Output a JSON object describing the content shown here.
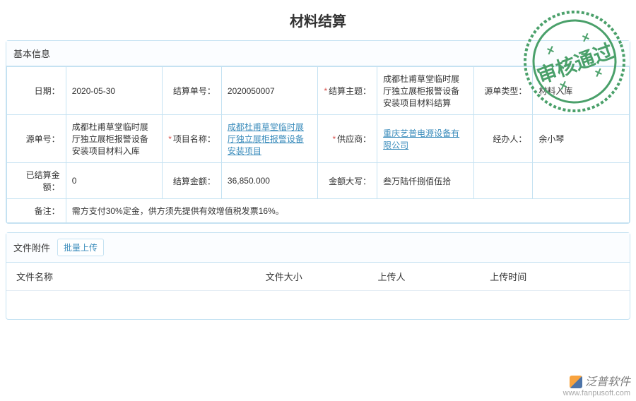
{
  "page_title": "材料结算",
  "stamp_text": "审核通过",
  "basic_info": {
    "header": "基本信息",
    "rows": [
      [
        {
          "label": "日期：",
          "req": false,
          "value": "2020-05-30",
          "link": false
        },
        {
          "label": "结算单号：",
          "req": false,
          "value": "2020050007",
          "link": false
        },
        {
          "label": "结算主题：",
          "req": true,
          "value": "成都杜甫草堂临时展厅独立展柜报警设备安装项目材料结算",
          "link": false
        },
        {
          "label": "源单类型：",
          "req": false,
          "value": "材料入库",
          "link": false
        }
      ],
      [
        {
          "label": "源单号：",
          "req": false,
          "value": "成都杜甫草堂临时展厅独立展柜报警设备安装项目材料入库",
          "link": false
        },
        {
          "label": "项目名称：",
          "req": true,
          "value": "成都杜甫草堂临时展厅独立展柜报警设备安装项目",
          "link": true
        },
        {
          "label": "供应商：",
          "req": true,
          "value": "重庆艺普电源设备有限公司",
          "link": true
        },
        {
          "label": "经办人：",
          "req": false,
          "value": "余小琴",
          "link": false
        }
      ],
      [
        {
          "label": "已结算金额：",
          "req": false,
          "value": "0",
          "link": false
        },
        {
          "label": "结算金额：",
          "req": false,
          "value": "36,850.000",
          "link": false
        },
        {
          "label": "金额大写：",
          "req": false,
          "value": "叁万陆仟捌佰伍拾",
          "link": false
        },
        {
          "label": "",
          "req": false,
          "value": "",
          "link": false
        }
      ]
    ],
    "remark_label": "备注：",
    "remark_value": "需方支付30%定金，供方须先提供有效增值税发票16%。"
  },
  "attachments": {
    "header": "文件附件",
    "batch_upload": "批量上传",
    "columns": [
      "文件名称",
      "文件大小",
      "上传人",
      "上传时间"
    ],
    "rows": []
  },
  "watermark": {
    "brand": "泛普软件",
    "url": "www.fanpusoft.com"
  },
  "colors": {
    "border": "#c5e2f2",
    "link": "#3c8dbc",
    "required": "#d9534f",
    "stamp": "#4aa06a"
  }
}
